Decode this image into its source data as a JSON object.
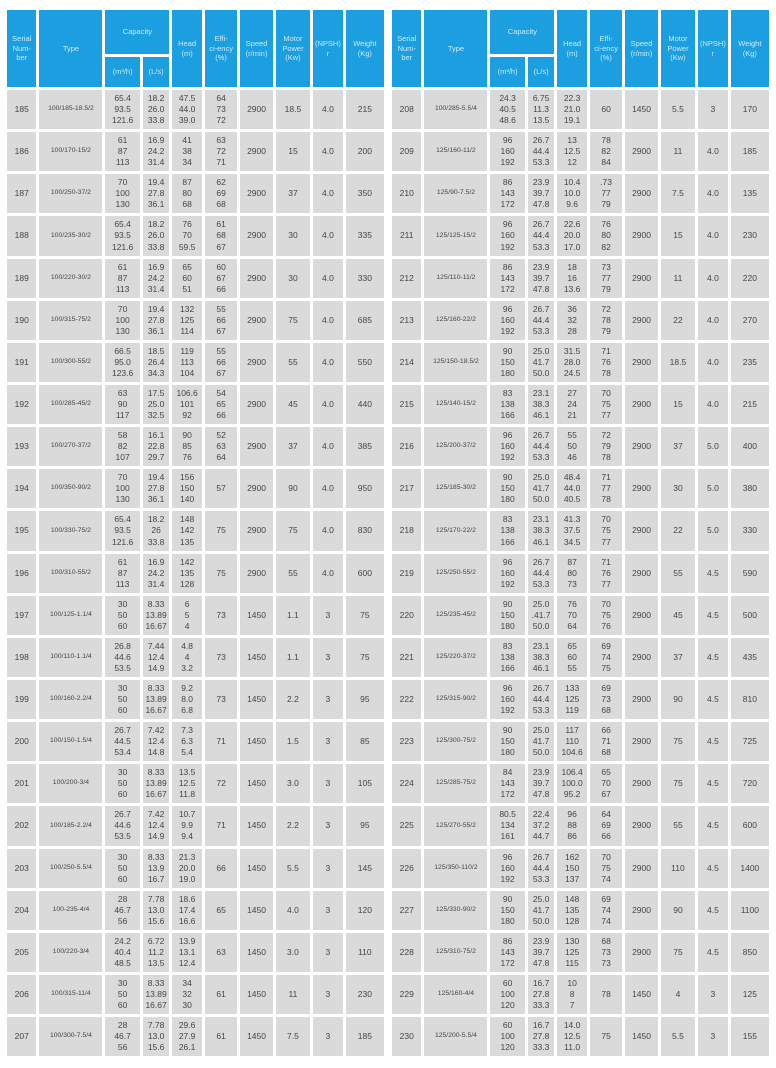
{
  "theme": {
    "header_bg": "#1b9fe0",
    "header_text": "#cfeaf8",
    "row_bg": "#dadada",
    "cell_text": "#454545",
    "page_bg": "#ffffff"
  },
  "columns": {
    "serial": "Serial\nNum-\nber",
    "type": "Type",
    "capacity": "Capacity",
    "m3h": "(m³/h)",
    "ls": "(L/s)",
    "head": "Head\n(m)",
    "eff": "Effi-\nci-ency\n(%)",
    "speed": "Speed\n(r/min)",
    "power": "Motor\nPower\n(Kw)",
    "npsh": "(NPSH)\nr",
    "weight": "Weight\n(Kg)"
  },
  "tables": [
    {
      "name": "left",
      "rows": [
        [
          "185",
          "100/185-18.5/2",
          "65.4\n93.5\n121.6",
          "18.2\n26.0\n33.8",
          "47.5\n44.0\n39.0",
          "64\n73\n72",
          "2900",
          "18.5",
          "4.0",
          "215"
        ],
        [
          "186",
          "100/170-15/2",
          "61\n87\n113",
          "16.9\n24.2\n31.4",
          "41\n38\n34",
          "63\n72\n71",
          "2900",
          "15",
          "4.0",
          "200"
        ],
        [
          "187",
          "100/250-37/2",
          "70\n100\n130",
          "19.4\n27.8\n36.1",
          "87\n80\n68",
          "62\n69\n68",
          "2900",
          "37",
          "4.0",
          "350"
        ],
        [
          "188",
          "100/235-30/2",
          "65.4\n93.5\n121.6",
          "18.2\n26.0\n33.8",
          "76\n70\n59.5",
          "61\n68\n67",
          "2900",
          "30",
          "4.0",
          "335"
        ],
        [
          "189",
          "100/220-30/2",
          "61\n87\n113",
          "16.9\n24.2\n31.4",
          "65\n60\n51",
          "60\n67\n66",
          "2900",
          "30",
          "4.0",
          "330"
        ],
        [
          "190",
          "100/315-75/2",
          "70\n100\n130",
          "19.4\n27.8\n36.1",
          "132\n125\n114",
          "55\n66\n67",
          "2900",
          "75",
          "4.0",
          "685"
        ],
        [
          "191",
          "100/300-55/2",
          "66.5\n95.0\n123.6",
          "18.5\n26.4\n34.3",
          "119\n113\n104",
          "55\n66\n67",
          "2900",
          "55",
          "4.0",
          "550"
        ],
        [
          "192",
          "100/285-45/2",
          "63\n90\n117",
          "17.5\n25.0\n32.5",
          "106.6\n101\n92",
          "54\n65\n66",
          "2900",
          "45",
          "4.0",
          "440"
        ],
        [
          "193",
          "100/270-37/2",
          "58\n82\n107",
          "16.1\n22.8\n29.7",
          "90\n85\n76",
          "52\n63\n64",
          "2900",
          "37",
          "4.0",
          "385"
        ],
        [
          "194",
          "100/350-90/2",
          "70\n100\n130",
          "19.4\n27.8\n36.1",
          "156\n150\n140",
          "57",
          "2900",
          "90",
          "4.0",
          "950"
        ],
        [
          "195",
          "100/330-75/2",
          "65.4\n93.5\n121.6",
          "18.2\n26\n33.8",
          "148\n142\n135",
          "75",
          "2900",
          "75",
          "4.0",
          "830"
        ],
        [
          "196",
          "100/310-55/2",
          "61\n87\n113",
          "16.9\n24.2\n31.4",
          "142\n135\n128",
          "75",
          "2900",
          "55",
          "4.0",
          "600"
        ],
        [
          "197",
          "100/125-1.1/4",
          "30\n50\n60",
          "8.33\n13.89\n16.67",
          "6\n5\n4",
          "73",
          "1450",
          "1.1",
          "3",
          "75"
        ],
        [
          "198",
          "100/110-1.1/4",
          "26.8\n44.6\n53.5",
          "7.44\n12.4\n14.9",
          "4.8\n4\n3.2",
          "73",
          "1450",
          "1.1",
          "3",
          "75"
        ],
        [
          "199",
          "100/160-2.2/4",
          "30\n50\n60",
          "8.33\n13.89\n16.67",
          "9.2\n8.0\n6.8",
          "73",
          "1450",
          "2.2",
          "3",
          "95"
        ],
        [
          "200",
          "100/150-1.5/4",
          "26.7\n44.5\n53.4",
          "7.42\n12.4\n14.8",
          "7.3\n6.3\n5.4",
          "71",
          "1450",
          "1.5",
          "3",
          "85"
        ],
        [
          "201",
          "100/200-3/4",
          "30\n50\n60",
          "8.33\n13.89\n16.67",
          "13.5\n12.5\n11.8",
          "72",
          "1450",
          "3.0",
          "3",
          "105"
        ],
        [
          "202",
          "100/185-2.2/4",
          "26.7\n44.6\n53.5",
          "7.42\n12.4\n14.9",
          "10.7\n9.9\n9.4",
          "71",
          "1450",
          "2.2",
          "3",
          "95"
        ],
        [
          "203",
          "100/250-5.5/4",
          "30\n50\n60",
          "8.33\n13.9\n16.7",
          "21.3\n20.0\n19.0",
          "66",
          "1450",
          "5.5",
          "3",
          "145"
        ],
        [
          "204",
          "100-235-4/4",
          "28\n46.7\n56",
          "7.78\n13.0\n15.6",
          "18.6\n17.4\n16.6",
          "65",
          "1450",
          "4.0",
          "3",
          "120"
        ],
        [
          "205",
          "100/220-3/4",
          "24.2\n40.4\n48.5",
          "6.72\n11.2\n13.5",
          "13.9\n13.1\n12.4",
          "63",
          "1450",
          "3.0",
          "3",
          "110"
        ],
        [
          "206",
          "100/315-11/4",
          "30\n50\n60",
          "8.33\n13.89\n16.67",
          "34\n32\n30",
          "61",
          "1450",
          "11",
          "3",
          "230"
        ],
        [
          "207",
          "100/300-7.5/4",
          "28\n46.7\n56",
          "7.78\n13.0\n15.6",
          "29.6\n27.9\n26.1",
          "61",
          "1450",
          "7.5",
          "3",
          "185"
        ]
      ]
    },
    {
      "name": "right",
      "rows": [
        [
          "208",
          "100/285-5.5/4",
          "24.3\n40.5\n48.6",
          "6.75\n11.3\n13.5",
          "22.3\n21.0\n19.1",
          "60",
          "1450",
          "5.5",
          "3",
          "170"
        ],
        [
          "209",
          "125/160-11/2",
          "96\n160\n192",
          "26.7\n44.4\n53.3",
          "13\n12.5\n12",
          "78\n82\n84",
          "2900",
          "11",
          "4.0",
          "185"
        ],
        [
          "210",
          "125/90-7.5/2",
          "86\n143\n172",
          "23.9\n39.7\n47.8",
          "10.4\n10.0\n9.6",
          ".73\n77\n79",
          "2900",
          "7.5",
          "4.0",
          "135"
        ],
        [
          "211",
          "125/125-15/2",
          "96\n160\n192",
          "26.7\n44.4\n53.3",
          "22.6\n20.0\n17.0",
          "76\n80\n82",
          "2900",
          "15",
          "4.0",
          "230"
        ],
        [
          "212",
          "125/110-11/2",
          "86\n143\n172",
          "23.9\n39.7\n47.8",
          "18\n16\n13.6",
          "73\n77\n79",
          "2900",
          "11",
          "4.0",
          "220"
        ],
        [
          "213",
          "125/160-22/2",
          "96\n160\n192",
          "26.7\n44.4\n53.3",
          "36\n32\n28",
          "72\n78\n79",
          "2900",
          "22",
          "4.0",
          "270"
        ],
        [
          "214",
          "125/150-18.5/2",
          "90\n150\n180",
          "25.0\n41.7\n50.0",
          "31.5\n28.0\n24.5",
          "71\n76\n78",
          "2900",
          "18.5",
          "4.0",
          "235"
        ],
        [
          "215",
          "125/140-15/2",
          "83\n138\n166",
          "23.1\n38.3\n46.1",
          "27\n24\n21",
          "70\n75\n77",
          "2900",
          "15",
          "4.0",
          "215"
        ],
        [
          "216",
          "125/200-37/2",
          "96\n160\n192",
          "26.7\n44.4\n53.3",
          "55\n50\n46",
          "72\n79\n78",
          "2900",
          "37",
          "5.0",
          "400"
        ],
        [
          "217",
          "125/185-30/2",
          "90\n150\n180",
          "25.0\n41.7\n50.0",
          "48.4\n44.0\n40.5",
          "71\n77\n78",
          "2900",
          "30",
          "5.0",
          "380"
        ],
        [
          "218",
          "125/170-22/2",
          "83\n138\n166",
          "23.1\n38.3\n46.1",
          "41.3\n37.5\n34.5",
          "70\n75\n77",
          "2900",
          "22",
          "5.0",
          "330"
        ],
        [
          "219",
          "125/250-55/2",
          "96\n160\n192",
          "26.7\n44.4\n53.3",
          "87\n80\n73",
          "71\n76\n77",
          "2900",
          "55",
          "4.5",
          "590"
        ],
        [
          "220",
          "125/235-45/2",
          "90\n150\n180",
          "25.0\n.41.7\n50.0",
          "76\n70\n64",
          "70\n75\n76",
          "2900",
          "45",
          "4.5",
          "500"
        ],
        [
          "221",
          "125/220-37/2",
          "83\n138\n166",
          "23.1\n38.3\n46.1",
          "65\n60\n55",
          "69\n74\n75",
          "2900",
          "37",
          "4.5",
          "435"
        ],
        [
          "222",
          "125/315-90/2",
          "96\n160\n192",
          "26.7\n44.4\n53.3",
          "133\n125\n119",
          "69\n73\n68",
          "2900",
          "90",
          "4.5",
          "810"
        ],
        [
          "223",
          "125/300-75/2",
          "90\n150\n180",
          "25.0\n41.7\n50.0",
          "117\n110\n104.6",
          "66\n71\n68",
          "2900",
          "75",
          "4.5",
          "725"
        ],
        [
          "224",
          "125/285-75/2",
          "84\n143\n172",
          "23.9\n39.7\n47.8",
          "106.4\n100.0\n95.2",
          "65\n70\n67",
          "2900",
          "75",
          "4.5",
          "720"
        ],
        [
          "225",
          "125/270-55/2",
          "80.5\n134\n161",
          "22.4\n37.2\n44.7",
          "96\n88\n86",
          "64\n69\n66",
          "2900",
          "55",
          "4.5",
          "600"
        ],
        [
          "226",
          "125/350-110/2",
          "96\n160\n192",
          "26.7\n44.4\n53.3",
          "162\n150\n137",
          "70\n75\n74",
          "2900",
          "110",
          "4.5",
          "1400"
        ],
        [
          "227",
          "125/330-90/2",
          "90\n150\n180",
          "25.0\n41.7\n50.0",
          "148\n135\n128",
          "69\n74\n74",
          "2900",
          "90",
          "4.5",
          "1100"
        ],
        [
          "228",
          "125/310-75/2",
          "86\n143\n172",
          "23.9\n39.7\n47.8",
          "130\n125\n115",
          "68\n73\n73",
          "2900",
          "75",
          "4.5",
          "850"
        ],
        [
          "229",
          "125/160-4/4",
          "60\n100\n120",
          "16.7\n27.8\n33.3",
          "10\n8\n7",
          "78",
          "1450",
          "4",
          "3",
          "125"
        ],
        [
          "230",
          "125/200-5.5/4",
          "60\n100\n120",
          "16.7\n27.8\n33.3",
          "14.0\n12.5\n11.0",
          "75",
          "1450",
          "5.5",
          "3",
          "155"
        ]
      ]
    }
  ]
}
